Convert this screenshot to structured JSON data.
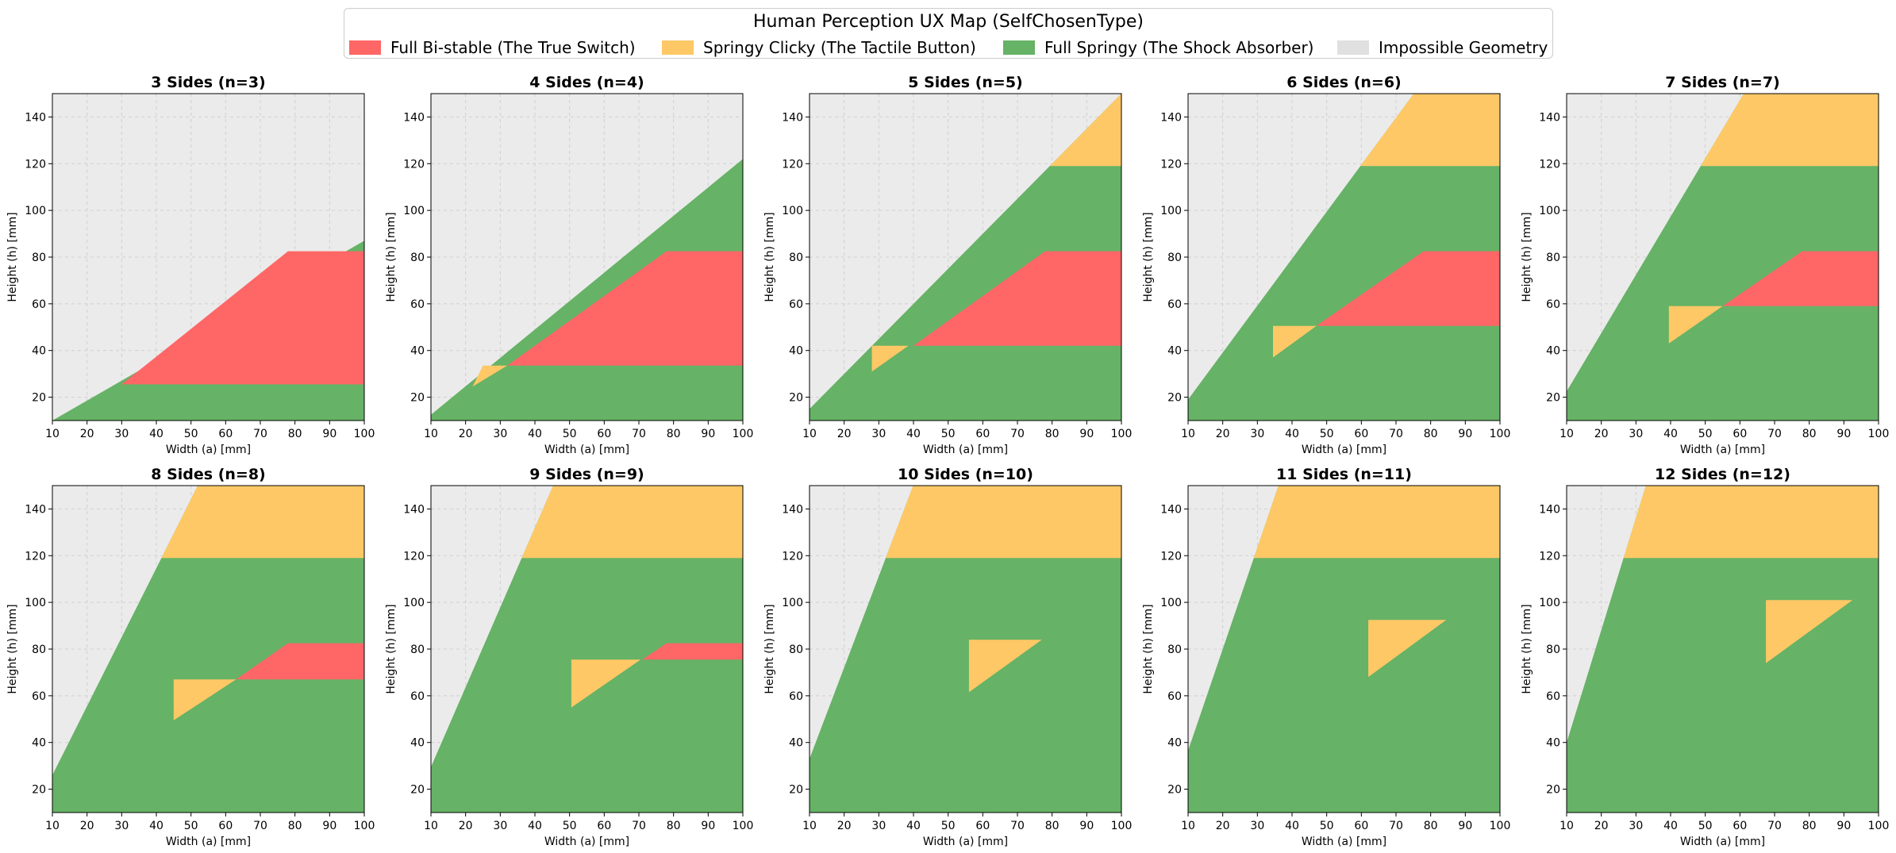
{
  "figure_title": "Human Perception UX Map (SelfChosenType)",
  "legend": [
    {
      "key": "bistable",
      "label": "Full Bi-stable (The True Switch)",
      "color": "#ff6666"
    },
    {
      "key": "clicky",
      "label": "Springy Clicky (The Tactile Button)",
      "color": "#ffc866"
    },
    {
      "key": "springy",
      "label": "Full Springy (The Shock Absorber)",
      "color": "#66b266"
    },
    {
      "key": "impossible",
      "label": "Impossible Geometry",
      "color": "#e0e0e0"
    }
  ],
  "colors": {
    "impossible_bg": "#ebebeb",
    "bistable": "#ff6666",
    "clicky": "#ffc866",
    "springy": "#66b266"
  },
  "chart_data": {
    "type": "heatmap",
    "xlabel": "Width (a) [mm]",
    "ylabel": "Height (h) [mm]",
    "xlim": [
      10,
      100
    ],
    "ylim": [
      10,
      150
    ],
    "xticks": [
      "10",
      "20",
      "30",
      "40",
      "50",
      "60",
      "70",
      "80",
      "90",
      "100"
    ],
    "yticks": [
      "20",
      "40",
      "60",
      "80",
      "100",
      "120",
      "140"
    ],
    "grid": true,
    "panels": [
      {
        "n": 3,
        "title": "3 Sides (n=3)",
        "feasible_boundary": [
          [
            10,
            10
          ],
          [
            100,
            87
          ]
        ],
        "bistable_region": [
          [
            30,
            25.5
          ],
          [
            100,
            25.5
          ],
          [
            100,
            82.5
          ],
          [
            78,
            82.5
          ]
        ],
        "clicky_upper_threshold": null,
        "clicky_triangle": null
      },
      {
        "n": 4,
        "title": "4 Sides (n=4)",
        "feasible_boundary": [
          [
            10,
            12.5
          ],
          [
            100,
            122
          ]
        ],
        "bistable_region": [
          [
            32,
            33.5
          ],
          [
            100,
            33.5
          ],
          [
            100,
            82.5
          ],
          [
            78,
            82.5
          ]
        ],
        "clicky_upper_threshold": null,
        "clicky_triangle": [
          [
            22,
            24.5
          ],
          [
            32,
            33.5
          ],
          [
            25,
            33.5
          ]
        ]
      },
      {
        "n": 5,
        "title": "5 Sides (n=5)",
        "feasible_boundary": [
          [
            10,
            15
          ],
          [
            100,
            150
          ]
        ],
        "bistable_region": [
          [
            40,
            42
          ],
          [
            100,
            42
          ],
          [
            100,
            82.5
          ],
          [
            78,
            82.5
          ]
        ],
        "clicky_upper_threshold": 119,
        "clicky_triangle": [
          [
            28,
            42
          ],
          [
            38.5,
            42
          ],
          [
            28,
            31
          ]
        ]
      },
      {
        "n": 6,
        "title": "6 Sides (n=6)",
        "feasible_boundary": [
          [
            10,
            19
          ],
          [
            100,
            200
          ]
        ],
        "bistable_region": [
          [
            47,
            50.5
          ],
          [
            100,
            50.5
          ],
          [
            100,
            82.5
          ],
          [
            78,
            82.5
          ]
        ],
        "clicky_upper_threshold": 119,
        "clicky_triangle": [
          [
            34.5,
            50.5
          ],
          [
            47,
            50.5
          ],
          [
            34.5,
            37
          ]
        ]
      },
      {
        "n": 7,
        "title": "7 Sides (n=7)",
        "feasible_boundary": [
          [
            10,
            22.5
          ],
          [
            100,
            247
          ]
        ],
        "bistable_region": [
          [
            55,
            59
          ],
          [
            100,
            59
          ],
          [
            100,
            82.5
          ],
          [
            78,
            82.5
          ]
        ],
        "clicky_upper_threshold": 119,
        "clicky_triangle": [
          [
            39.5,
            59
          ],
          [
            55,
            59
          ],
          [
            39.5,
            43
          ]
        ]
      },
      {
        "n": 8,
        "title": "8 Sides (n=8)",
        "feasible_boundary": [
          [
            10,
            26
          ],
          [
            100,
            292
          ]
        ],
        "bistable_region": [
          [
            63,
            67
          ],
          [
            100,
            67
          ],
          [
            100,
            82.5
          ],
          [
            78,
            82.5
          ]
        ],
        "clicky_upper_threshold": 119,
        "clicky_triangle": [
          [
            45,
            67
          ],
          [
            63,
            67
          ],
          [
            45,
            49.5
          ]
        ]
      },
      {
        "n": 9,
        "title": "9 Sides (n=9)",
        "feasible_boundary": [
          [
            10,
            29.5
          ],
          [
            100,
            337
          ]
        ],
        "bistable_region": [
          [
            71,
            75.5
          ],
          [
            100,
            75.5
          ],
          [
            100,
            82.5
          ],
          [
            78,
            82.5
          ]
        ],
        "clicky_upper_threshold": 119,
        "clicky_triangle": [
          [
            50.5,
            75.5
          ],
          [
            70.5,
            75.5
          ],
          [
            50.5,
            55
          ]
        ]
      },
      {
        "n": 10,
        "title": "10 Sides (n=10)",
        "feasible_boundary": [
          [
            10,
            33
          ],
          [
            100,
            385
          ]
        ],
        "bistable_region": null,
        "clicky_upper_threshold": 119,
        "clicky_triangle": [
          [
            56,
            84
          ],
          [
            77,
            84
          ],
          [
            56,
            61.5
          ]
        ]
      },
      {
        "n": 11,
        "title": "11 Sides (n=11)",
        "feasible_boundary": [
          [
            10,
            36.5
          ],
          [
            100,
            428
          ]
        ],
        "bistable_region": null,
        "clicky_upper_threshold": 119,
        "clicky_triangle": [
          [
            62,
            92.5
          ],
          [
            84.5,
            92.5
          ],
          [
            62,
            68
          ]
        ]
      },
      {
        "n": 12,
        "title": "12 Sides (n=12)",
        "feasible_boundary": [
          [
            10,
            40
          ],
          [
            100,
            473
          ]
        ],
        "bistable_region": null,
        "clicky_upper_threshold": 119,
        "clicky_triangle": [
          [
            67.5,
            101
          ],
          [
            92.5,
            101
          ],
          [
            67.5,
            74
          ]
        ]
      }
    ]
  }
}
